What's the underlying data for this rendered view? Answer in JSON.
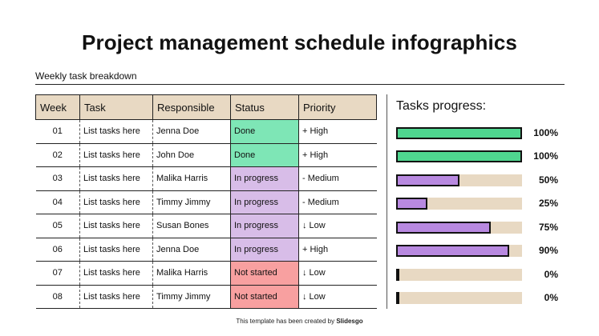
{
  "title": "Project management schedule infographics",
  "subtitle": "Weekly task breakdown",
  "table": {
    "headers": [
      "Week",
      "Task",
      "Responsible",
      "Status",
      "Priority"
    ],
    "rows": [
      {
        "week": "01",
        "task": "List tasks here",
        "responsible": "Jenna Doe",
        "status": "Done",
        "status_kind": "done",
        "priority": "+ High"
      },
      {
        "week": "02",
        "task": "List tasks here",
        "responsible": "John Doe",
        "status": "Done",
        "status_kind": "done",
        "priority": "+ High"
      },
      {
        "week": "03",
        "task": "List tasks here",
        "responsible": "Malika Harris",
        "status": "In progress",
        "status_kind": "progress",
        "priority": "- Medium"
      },
      {
        "week": "04",
        "task": "List tasks here",
        "responsible": "Timmy Jimmy",
        "status": "In progress",
        "status_kind": "progress",
        "priority": "- Medium"
      },
      {
        "week": "05",
        "task": "List tasks here",
        "responsible": "Susan Bones",
        "status": "In progress",
        "status_kind": "progress",
        "priority": "↓ Low"
      },
      {
        "week": "06",
        "task": "List tasks here",
        "responsible": "Jenna Doe",
        "status": "In progress",
        "status_kind": "progress",
        "priority": "+ High"
      },
      {
        "week": "07",
        "task": "List tasks here",
        "responsible": "Malika Harris",
        "status": "Not started",
        "status_kind": "notstarted",
        "priority": "↓ Low"
      },
      {
        "week": "08",
        "task": "List tasks here",
        "responsible": "Timmy Jimmy",
        "status": "Not started",
        "status_kind": "notstarted",
        "priority": "↓ Low"
      }
    ]
  },
  "progress": {
    "title": "Tasks progress:",
    "items": [
      {
        "value": 1.0,
        "label": "100%",
        "color": "green"
      },
      {
        "value": 1.0,
        "label": "100%",
        "color": "green"
      },
      {
        "value": 0.5,
        "label": "50%",
        "color": "purple"
      },
      {
        "value": 0.25,
        "label": "25%",
        "color": "purple"
      },
      {
        "value": 0.75,
        "label": "75%",
        "color": "purple"
      },
      {
        "value": 0.9,
        "label": "90%",
        "color": "purple"
      },
      {
        "value": 0.0,
        "label": "0%",
        "color": "black"
      },
      {
        "value": 0.0,
        "label": "0%",
        "color": "black"
      }
    ]
  },
  "colors": {
    "header_bg": "#e8d9c3",
    "done": "#7ee6b6",
    "in_progress": "#d8bde8",
    "not_started": "#f8a0a0",
    "bar_green": "#4fd68f",
    "bar_purple": "#b889e0"
  },
  "footer": {
    "prefix": "This template has been created by",
    "brand": "Slidesgo"
  }
}
